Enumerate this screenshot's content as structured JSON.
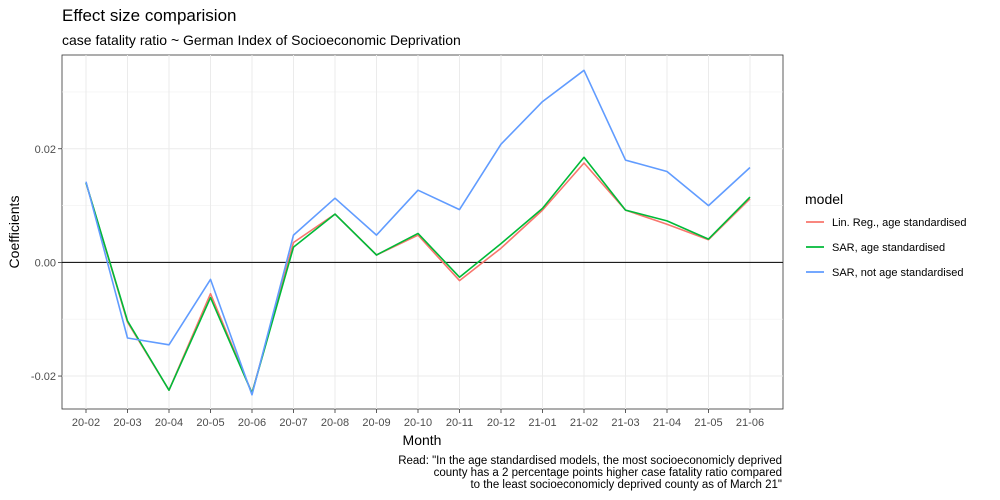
{
  "chart_data": {
    "type": "line",
    "title": "Effect size comparision",
    "subtitle": "case fatality ratio ~ German Index of Socioeconomic Deprivation",
    "xlabel": "Month",
    "ylabel": "Coefficients",
    "categories": [
      "20-02",
      "20-03",
      "20-04",
      "20-05",
      "20-06",
      "20-07",
      "20-08",
      "20-09",
      "20-10",
      "20-11",
      "20-12",
      "21-01",
      "21-02",
      "21-03",
      "21-04",
      "21-05",
      "21-06"
    ],
    "ylim": [
      -0.0258,
      0.0365
    ],
    "yticks": [
      -0.02,
      0.0,
      0.02
    ],
    "ytick_labels": [
      "-0.02",
      "0.00",
      "0.02"
    ],
    "grid": true,
    "hline": 0,
    "legend": {
      "title": "model",
      "position": "right"
    },
    "series": [
      {
        "name": "Lin. Reg., age standardised",
        "color": "#F8766D",
        "values": [
          0.014,
          -0.0105,
          -0.0225,
          -0.0055,
          -0.023,
          0.0035,
          0.0085,
          0.0013,
          0.0048,
          -0.0032,
          0.0025,
          0.0092,
          0.0175,
          0.0092,
          0.0067,
          0.004,
          0.0112
        ]
      },
      {
        "name": "SAR, age standardised",
        "color": "#00BA38",
        "values": [
          0.014,
          -0.0103,
          -0.0225,
          -0.0062,
          -0.023,
          0.0027,
          0.0085,
          0.0013,
          0.0051,
          -0.0026,
          0.0033,
          0.0095,
          0.0185,
          0.0092,
          0.0073,
          0.0041,
          0.0115
        ]
      },
      {
        "name": "SAR, not age standardised",
        "color": "#619CFF",
        "values": [
          0.0142,
          -0.0133,
          -0.0145,
          -0.003,
          -0.0233,
          0.0048,
          0.0113,
          0.0048,
          0.0127,
          0.0093,
          0.0208,
          0.0283,
          0.0338,
          0.018,
          0.016,
          0.01,
          0.0167
        ]
      }
    ],
    "caption": [
      "Read: \"In the age standardised models, the most socioeconomicly deprived",
      "county has a 2 percentage points higher case fatality ratio compared",
      "to the least socioeconomicly deprived county as of March 21\""
    ]
  }
}
